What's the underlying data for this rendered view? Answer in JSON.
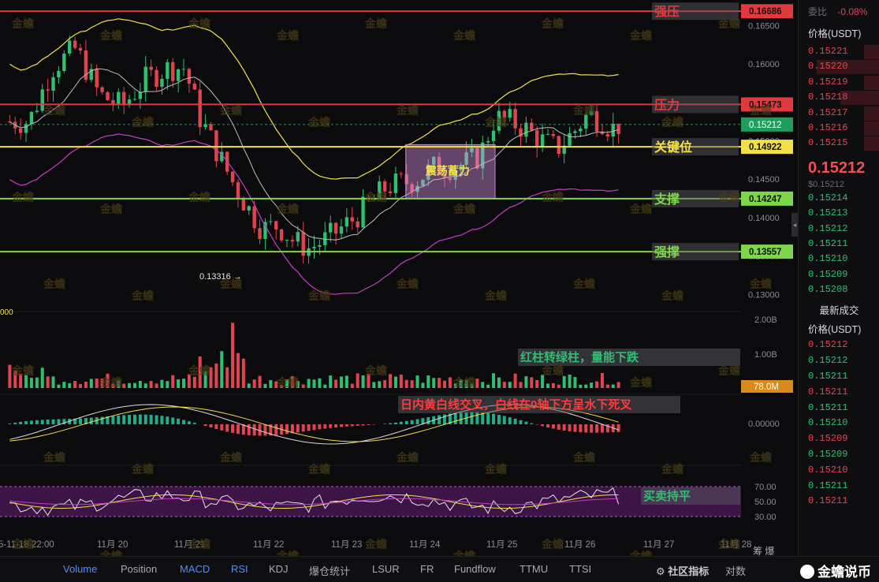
{
  "chart_data": {
    "type": "candlestick",
    "symbol_quote": "USDT",
    "price_axis": {
      "range": [
        0.1285,
        0.1675
      ],
      "ticks": [
        "0.16500",
        "0.16000",
        "0.15000",
        "0.14500",
        "0.14000",
        "0.13500",
        "0.13000"
      ]
    },
    "x_axis": {
      "labels": [
        "5-11-18 22:00",
        "11月 20",
        "11月 21",
        "11月 22",
        "11月 23",
        "11月 24",
        "11月 25",
        "11月 26",
        "11月 27",
        "11月 28"
      ]
    },
    "price_series_approx": {
      "x_days": [
        19.0,
        19.3,
        19.6,
        19.9,
        20.2,
        20.5,
        20.8,
        21.0,
        21.2,
        21.4,
        21.6,
        21.8,
        22.0,
        22.2,
        22.4,
        22.6,
        22.8,
        23.0,
        23.2,
        23.4,
        23.6,
        23.8,
        24.0,
        24.2,
        24.4,
        24.6,
        24.8,
        25.0,
        25.2,
        25.4,
        25.6,
        25.8,
        26.0,
        26.2,
        26.4,
        26.5,
        26.6
      ],
      "close": [
        0.1525,
        0.1595,
        0.162,
        0.156,
        0.1545,
        0.158,
        0.1595,
        0.1595,
        0.153,
        0.149,
        0.145,
        0.1415,
        0.1385,
        0.139,
        0.137,
        0.136,
        0.137,
        0.1385,
        0.14,
        0.142,
        0.144,
        0.1445,
        0.145,
        0.1465,
        0.1465,
        0.147,
        0.148,
        0.153,
        0.1525,
        0.1515,
        0.15,
        0.149,
        0.151,
        0.1535,
        0.1525,
        0.1515,
        0.1521
      ]
    },
    "levels": [
      {
        "name": "强压",
        "price": "0.16686",
        "color": "#e03a3e"
      },
      {
        "name": "压力",
        "price": "0.15473",
        "color": "#e03a3e"
      },
      {
        "name": "关键位",
        "price": "0.14922",
        "color": "#f2e04a"
      },
      {
        "name": "支撑",
        "price": "0.14247",
        "color": "#7ed64a"
      },
      {
        "name": "强撑",
        "price": "0.13557",
        "color": "#7ed64a"
      }
    ],
    "current_price": "0.15212",
    "low_marker": "0.13316 →",
    "consolidation_box": {
      "label": "震荡蓄力",
      "from_day": 23.85,
      "to_day": 25.0,
      "low": 0.1425,
      "high": 0.1495
    },
    "volume": {
      "ticks": [
        "2.00B",
        "1.00B"
      ],
      "current": "78.0M",
      "left_label": "000"
    },
    "macd": {
      "tick": "0.00000"
    },
    "rsi": {
      "ticks": [
        "70.00",
        "50.00",
        "30.00"
      ]
    },
    "annotations": {
      "volume": "红柱转绿柱，量能下跌",
      "macd": "日内黄白线交叉，白线在0轴下方呈水下死叉",
      "rsi": "买卖持平"
    },
    "watermark": "金蟾"
  },
  "book": {
    "ratio_label": "委比",
    "ratio_value": "-0.08%",
    "price_header": "价格(USDT)",
    "asks": [
      "0.15221",
      "0.15220",
      "0.15219",
      "0.15218",
      "0.15217",
      "0.15216",
      "0.15215"
    ],
    "last_price": "0.15212",
    "last_sub": "$0.15212",
    "bids": [
      "0.15214",
      "0.15213",
      "0.15212",
      "0.15211",
      "0.15210",
      "0.15209",
      "0.15208"
    ],
    "trades_title": "最新成交",
    "trades_header": "价格(USDT)",
    "trades": [
      {
        "p": "0.15212",
        "s": "ask"
      },
      {
        "p": "0.15212",
        "s": "bid"
      },
      {
        "p": "0.15211",
        "s": "bid"
      },
      {
        "p": "0.15211",
        "s": "ask"
      },
      {
        "p": "0.15211",
        "s": "bid"
      },
      {
        "p": "0.15210",
        "s": "bid"
      },
      {
        "p": "0.15209",
        "s": "ask"
      },
      {
        "p": "0.15209",
        "s": "bid"
      },
      {
        "p": "0.15210",
        "s": "ask"
      },
      {
        "p": "0.15211",
        "s": "bid"
      },
      {
        "p": "0.15211",
        "s": "ask"
      }
    ]
  },
  "tabs": [
    "Volume",
    "Position",
    "MACD",
    "RSI",
    "KDJ",
    "爆仓统计",
    "LSUR",
    "FR",
    "Fundflow",
    "TTMU",
    "TTSI"
  ],
  "active_tabs": [
    "Volume",
    "MACD",
    "RSI"
  ],
  "tabs_right": {
    "indicator": "社区指标",
    "compare": "对数",
    "extra": "筹 爆"
  },
  "brand": "金蟾说币",
  "colors": {
    "up": "#2fbf71",
    "down": "#e0454f",
    "yellow": "#f2e04a",
    "white": "#d8d8d8",
    "magenta": "#c43fc4"
  }
}
